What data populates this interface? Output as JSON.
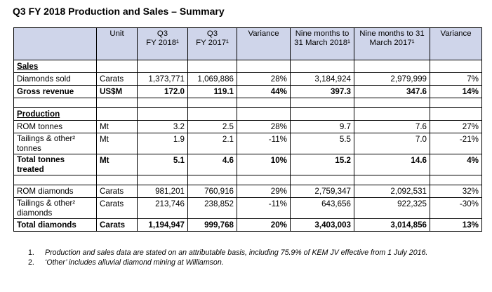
{
  "title": "Q3 FY 2018 Production and Sales – Summary",
  "table": {
    "headers": {
      "unit": "Unit",
      "q3_2018": "Q3",
      "q3_2018_line2": "FY 2018¹",
      "q3_2017": "Q3",
      "q3_2017_line2": "FY 2017¹",
      "variance": "Variance",
      "nine_2018": "Nine months to 31 March 2018¹",
      "nine_2017": "Nine months to 31 March 2017¹",
      "variance2": "Variance"
    },
    "sales": {
      "heading": "Sales",
      "diamonds_sold": {
        "label": "Diamonds sold",
        "unit": "Carats",
        "q3_2018": "1,373,771",
        "q3_2017": "1,069,886",
        "variance": "28%",
        "nine_2018": "3,184,924",
        "nine_2017": "2,979,999",
        "variance2": "7%"
      },
      "gross_revenue": {
        "label": "Gross revenue",
        "unit": "US$M",
        "q3_2018": "172.0",
        "q3_2017": "119.1",
        "variance": "44%",
        "nine_2018": "397.3",
        "nine_2017": "347.6",
        "variance2": "14%"
      }
    },
    "production": {
      "heading": "Production",
      "rom_tonnes": {
        "label": "ROM tonnes",
        "unit": "Mt",
        "q3_2018": "3.2",
        "q3_2017": "2.5",
        "variance": "28%",
        "nine_2018": "9.7",
        "nine_2017": "7.6",
        "variance2": "27%"
      },
      "tailings_tonnes": {
        "label": "Tailings & other² tonnes",
        "unit": "Mt",
        "q3_2018": "1.9",
        "q3_2017": "2.1",
        "variance": "-11%",
        "nine_2018": "5.5",
        "nine_2017": "7.0",
        "variance2": "-21%"
      },
      "total_tonnes": {
        "label": "Total tonnes treated",
        "unit": "Mt",
        "q3_2018": "5.1",
        "q3_2017": "4.6",
        "variance": "10%",
        "nine_2018": "15.2",
        "nine_2017": "14.6",
        "variance2": "4%"
      },
      "rom_diamonds": {
        "label": "ROM diamonds",
        "unit": "Carats",
        "q3_2018": "981,201",
        "q3_2017": "760,916",
        "variance": "29%",
        "nine_2018": "2,759,347",
        "nine_2017": "2,092,531",
        "variance2": "32%"
      },
      "tailings_diamonds": {
        "label": "Tailings & other² diamonds",
        "unit": "Carats",
        "q3_2018": "213,746",
        "q3_2017": "238,852",
        "variance": "-11%",
        "nine_2018": "643,656",
        "nine_2017": "922,325",
        "variance2": "-30%"
      },
      "total_diamonds": {
        "label": "Total diamonds",
        "unit": "Carats",
        "q3_2018": "1,194,947",
        "q3_2017": "999,768",
        "variance": "20%",
        "nine_2018": "3,403,003",
        "nine_2017": "3,014,856",
        "variance2": "13%"
      }
    }
  },
  "footnotes": [
    {
      "num": "1.",
      "text": "Production and sales data are stated on an attributable basis, including 75.9% of KEM JV effective from 1 July 2016."
    },
    {
      "num": "2.",
      "text": "‘Other’ includes alluvial diamond mining at Williamson."
    }
  ]
}
